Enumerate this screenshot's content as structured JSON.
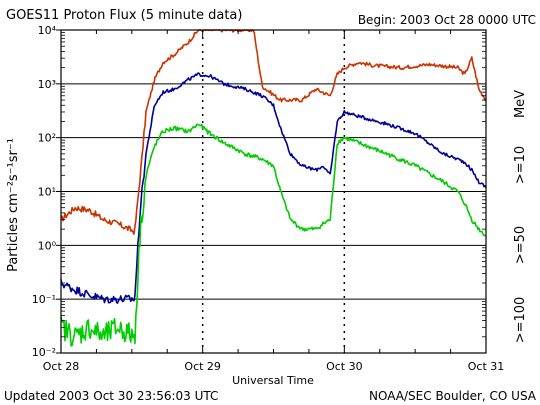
{
  "chart_data": {
    "type": "line",
    "title": "GOES11 Proton Flux (5 minute data)",
    "begin_label": "Begin: 2003 Oct 28 0000 UTC",
    "xlabel": "Universal Time",
    "ylabel": "Particles cm⁻²s⁻¹sr⁻¹",
    "yscale": "log",
    "ylim": [
      0.01,
      10000
    ],
    "xlim": [
      0,
      3
    ],
    "x_unit": "days since Oct 28 0000 UTC",
    "x_ticks": [
      {
        "value": 0,
        "label": "Oct 28"
      },
      {
        "value": 1,
        "label": "Oct 29"
      },
      {
        "value": 2,
        "label": "Oct 30"
      },
      {
        "value": 3,
        "label": "Oct 31"
      }
    ],
    "y_ticks": [
      {
        "exp": -2,
        "label": "10⁻²"
      },
      {
        "exp": -1,
        "label": "10⁻¹"
      },
      {
        "exp": 0,
        "label": "10⁰"
      },
      {
        "exp": 1,
        "label": "10¹"
      },
      {
        "exp": 2,
        "label": "10²"
      },
      {
        "exp": 3,
        "label": "10³"
      },
      {
        "exp": 4,
        "label": "10⁴"
      }
    ],
    "threshold": {
      "value": 10,
      "style": "dashed"
    },
    "series_unit": "MeV",
    "series": [
      {
        "name": ">=10",
        "color": "#cc3300",
        "x": [
          0.0,
          0.1,
          0.2,
          0.3,
          0.4,
          0.52,
          0.56,
          0.6,
          0.66,
          0.72,
          0.8,
          0.9,
          0.97,
          1.0,
          1.18,
          1.3,
          1.36,
          1.42,
          1.55,
          1.7,
          1.8,
          1.9,
          1.95,
          2.0,
          2.1,
          2.2,
          2.4,
          2.6,
          2.8,
          2.85,
          2.9,
          2.95,
          3.0
        ],
        "y": [
          3,
          5,
          4.5,
          3,
          2.5,
          1.8,
          20,
          300,
          1200,
          2500,
          3500,
          6000,
          10000,
          10000,
          10000,
          10000,
          10000,
          900,
          500,
          500,
          800,
          600,
          1500,
          2000,
          2500,
          2200,
          2000,
          2300,
          2000,
          1500,
          3000,
          800,
          500
        ]
      },
      {
        "name": ">=50",
        "color": "#000099",
        "x": [
          0.0,
          0.1,
          0.2,
          0.3,
          0.4,
          0.52,
          0.56,
          0.6,
          0.66,
          0.72,
          0.8,
          0.9,
          0.97,
          1.05,
          1.15,
          1.3,
          1.42,
          1.5,
          1.55,
          1.62,
          1.7,
          1.8,
          1.85,
          1.9,
          1.95,
          2.0,
          2.1,
          2.3,
          2.5,
          2.7,
          2.8,
          2.85,
          2.9,
          2.95,
          3.0
        ],
        "y": [
          0.2,
          0.15,
          0.12,
          0.1,
          0.1,
          0.1,
          5,
          50,
          400,
          700,
          800,
          1200,
          1500,
          1400,
          1000,
          800,
          600,
          400,
          150,
          50,
          30,
          25,
          30,
          20,
          200,
          300,
          250,
          180,
          120,
          50,
          40,
          35,
          25,
          15,
          12
        ]
      },
      {
        "name": ">=100",
        "color": "#00cc00",
        "x": [
          0.0,
          0.1,
          0.2,
          0.3,
          0.4,
          0.52,
          0.56,
          0.6,
          0.66,
          0.72,
          0.8,
          0.9,
          0.97,
          1.05,
          1.15,
          1.3,
          1.42,
          1.5,
          1.55,
          1.62,
          1.7,
          1.8,
          1.85,
          1.9,
          1.95,
          2.0,
          2.1,
          2.3,
          2.5,
          2.7,
          2.8,
          2.85,
          2.9,
          2.95,
          3.0
        ],
        "y": [
          0.03,
          0.02,
          0.03,
          0.02,
          0.03,
          0.02,
          2,
          20,
          70,
          130,
          150,
          130,
          180,
          120,
          80,
          50,
          40,
          30,
          10,
          3,
          2,
          2,
          2.5,
          3,
          80,
          100,
          80,
          50,
          30,
          15,
          10,
          6,
          3,
          2,
          1.5
        ]
      }
    ]
  },
  "footer": {
    "updated": "Updated 2003 Oct 30 23:56:03 UTC",
    "credit": "NOAA/SEC Boulder, CO USA"
  }
}
